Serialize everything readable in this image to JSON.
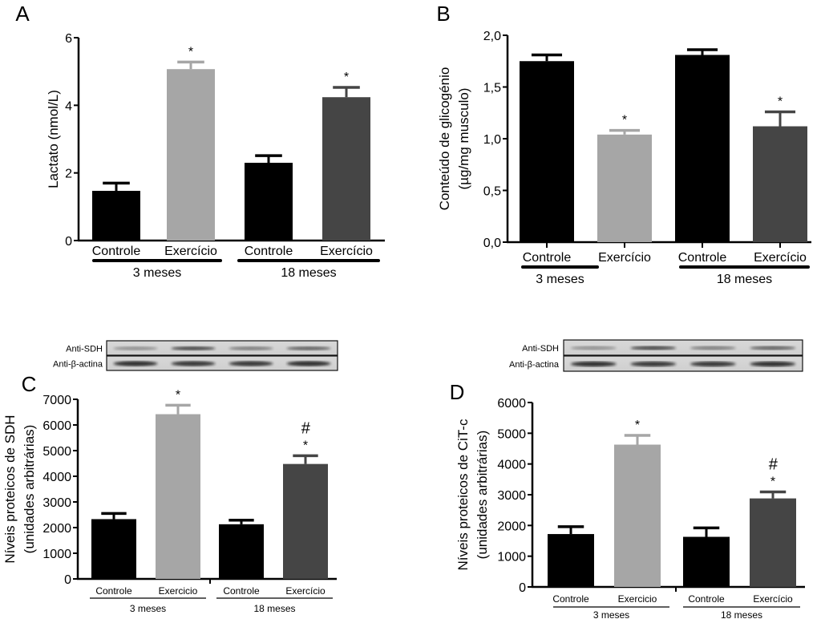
{
  "colors": {
    "controle": "#000000",
    "exercicio_3": "#a6a6a6",
    "exercicio_18": "#454545",
    "axis": "#000000"
  },
  "chart_data": [
    {
      "id": "A",
      "type": "bar",
      "panel_label": "A",
      "ylabel": "Lactato (nmol/L)",
      "ylim": [
        0,
        6
      ],
      "yticks": [
        "0",
        "2",
        "4",
        "6"
      ],
      "ytick_values": [
        0,
        2,
        4,
        6
      ],
      "categories": [
        "Controle",
        "Exercício",
        "Controle",
        "Exercício"
      ],
      "groups": [
        {
          "label": "3 meses",
          "members": [
            0,
            1
          ]
        },
        {
          "label": "18 meses",
          "members": [
            2,
            3
          ]
        }
      ],
      "values": [
        1.47,
        5.07,
        2.3,
        4.24
      ],
      "error": [
        0.23,
        0.21,
        0.21,
        0.29
      ],
      "annotations": [
        "",
        "*",
        "",
        "*"
      ],
      "bar_colors": [
        "controle",
        "exercicio_3",
        "controle",
        "exercicio_18"
      ],
      "grid": false
    },
    {
      "id": "B",
      "type": "bar",
      "panel_label": "B",
      "ylabel": "Conteúdo de glicogénio",
      "ylabel2": "(µg/mg musculo)",
      "ylim": [
        0,
        2.0
      ],
      "yticks": [
        "0,0",
        "0,5",
        "1,0",
        "1,5",
        "2,0"
      ],
      "ytick_values": [
        0,
        0.5,
        1.0,
        1.5,
        2.0
      ],
      "categories": [
        "Controle",
        "Exercício",
        "Controle",
        "Exercício"
      ],
      "groups": [
        {
          "label": "3 meses",
          "members": [
            0,
            1
          ]
        },
        {
          "label": "18 meses",
          "members": [
            2,
            3
          ]
        }
      ],
      "values": [
        1.75,
        1.04,
        1.81,
        1.12
      ],
      "error": [
        0.06,
        0.04,
        0.05,
        0.14
      ],
      "annotations": [
        "",
        "*",
        "",
        "*"
      ],
      "bar_colors": [
        "controle",
        "exercicio_3",
        "controle",
        "exercicio_18"
      ],
      "grid": false
    },
    {
      "id": "C",
      "type": "bar",
      "panel_label": "C",
      "ylabel": "Níveis proteicos de SDH",
      "ylabel2": "(unidades arbitrárias)",
      "ylim": [
        0,
        7000
      ],
      "yticks": [
        "0",
        "1000",
        "2000",
        "3000",
        "4000",
        "5000",
        "6000",
        "7000"
      ],
      "ytick_values": [
        0,
        1000,
        2000,
        3000,
        4000,
        5000,
        6000,
        7000
      ],
      "categories": [
        "Controle",
        "Exercicio",
        "Controle",
        "Exercício"
      ],
      "groups": [
        {
          "label": "3 meses",
          "members": [
            0,
            1
          ]
        },
        {
          "label": "18 meses",
          "members": [
            2,
            3
          ]
        }
      ],
      "values": [
        2330,
        6420,
        2130,
        4480
      ],
      "error": [
        220,
        350,
        160,
        320
      ],
      "annotations": [
        "",
        "*",
        "",
        "*"
      ],
      "annotations2": [
        "",
        "",
        "",
        "#"
      ],
      "bar_colors": [
        "controle",
        "exercicio_3",
        "controle",
        "exercicio_18"
      ],
      "blot_labels": [
        "Anti-SDH",
        "Anti-β-actina"
      ],
      "grid": false
    },
    {
      "id": "D",
      "type": "bar",
      "panel_label": "D",
      "ylabel": "Níveis proteicos de CiT-c",
      "ylabel2": "(unidades arbitrárias)",
      "ylim": [
        0,
        6000
      ],
      "yticks": [
        "0",
        "1000",
        "2000",
        "3000",
        "4000",
        "5000",
        "6000"
      ],
      "ytick_values": [
        0,
        1000,
        2000,
        3000,
        4000,
        5000,
        6000
      ],
      "categories": [
        "Controle",
        "Exercicio",
        "Controle",
        "Exercício"
      ],
      "groups": [
        {
          "label": "3 meses",
          "members": [
            0,
            1
          ]
        },
        {
          "label": "18 meses",
          "members": [
            2,
            3
          ]
        }
      ],
      "values": [
        1720,
        4630,
        1630,
        2880
      ],
      "error": [
        240,
        300,
        290,
        210
      ],
      "annotations": [
        "",
        "*",
        "",
        "*"
      ],
      "annotations2": [
        "",
        "",
        "",
        "#"
      ],
      "bar_colors": [
        "controle",
        "exercicio_3",
        "controle",
        "exercicio_18"
      ],
      "blot_labels": [
        "Anti-SDH",
        "Anti-β-actina"
      ],
      "grid": false
    }
  ]
}
